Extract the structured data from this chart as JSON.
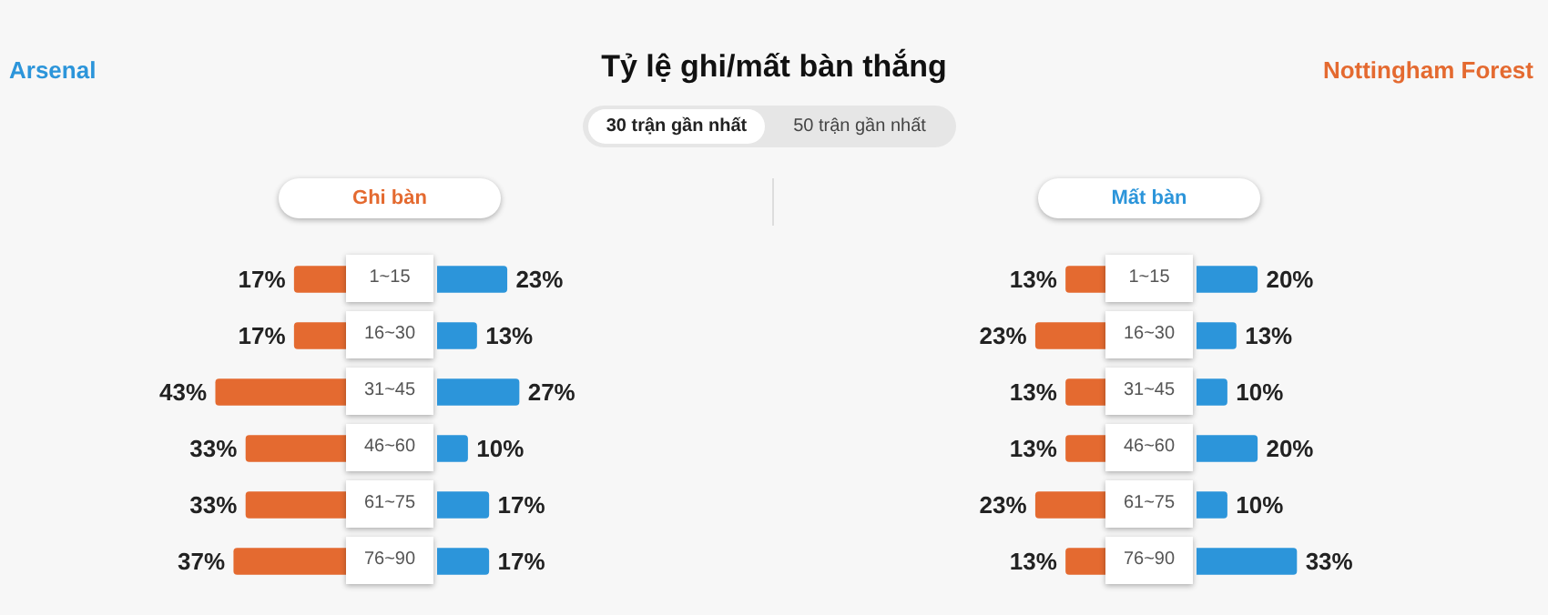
{
  "chart_data": [
    {
      "type": "other",
      "title": "Tỷ lệ ghi/mất bàn thắng",
      "annotations": [
        "30 trận gần nhất",
        "50 trận gần nhất"
      ]
    },
    {
      "type": "bar",
      "orientation": "horizontal",
      "title": "Ghi bàn",
      "categories": [
        "1~15",
        "16~30",
        "31~45",
        "46~60",
        "61~75",
        "76~90"
      ],
      "series": [
        {
          "color": "#e46a30",
          "values": [
            17,
            17,
            43,
            33,
            33,
            37
          ],
          "value_labels": [
            "17%",
            "17%",
            "43%",
            "33%",
            "33%",
            "37%"
          ]
        }
      ]
    },
    {
      "type": "bar",
      "orientation": "horizontal",
      "categories": [
        null,
        null,
        null,
        null,
        null,
        null
      ],
      "series": [
        {
          "name": "Arsenal",
          "color": "#2c95da",
          "values": [
            23,
            13,
            27,
            10,
            17,
            17
          ],
          "value_labels": [
            "23%",
            "13%",
            "27%",
            "10%",
            "17%",
            "17%"
          ]
        }
      ]
    },
    {
      "type": "bar",
      "orientation": "horizontal",
      "title": "Mất bàn",
      "categories": [
        "1~15",
        "16~30",
        "31~45",
        "46~60",
        "61~75",
        "76~90"
      ],
      "series": [
        {
          "name": "Nottingham Forest",
          "color": "#e46a30",
          "values": [
            13,
            23,
            13,
            13,
            23,
            13
          ],
          "value_labels": [
            "13%",
            "23%",
            "13%",
            "13%",
            "23%",
            "13%"
          ]
        }
      ]
    },
    {
      "type": "bar",
      "orientation": "horizontal",
      "categories": [
        null,
        null,
        null,
        null,
        null,
        null
      ],
      "series": [
        {
          "color": "#2c95da",
          "values": [
            20,
            13,
            10,
            20,
            10,
            33
          ],
          "value_labels": [
            "20%",
            "13%",
            "10%",
            "20%",
            "10%",
            "33%"
          ]
        }
      ]
    }
  ]
}
